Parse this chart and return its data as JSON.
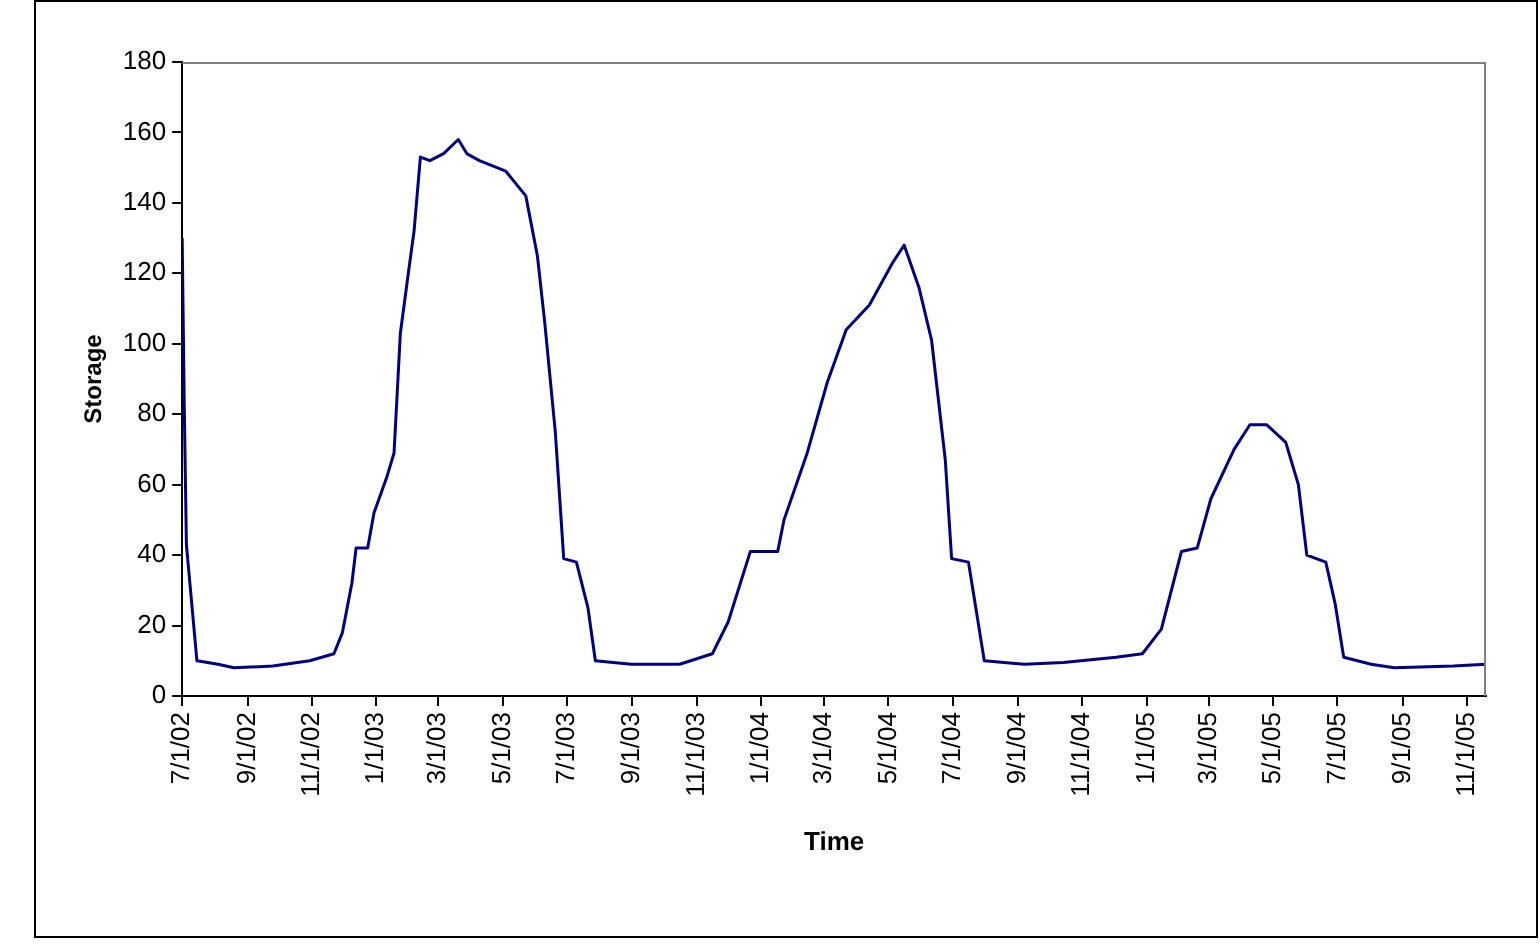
{
  "chart_data": {
    "type": "line",
    "xlabel": "Time",
    "ylabel": "Storage",
    "x": [
      "2002-07-01",
      "2002-07-03",
      "2002-07-05",
      "2002-07-15",
      "2002-08-04",
      "2002-08-19",
      "2002-09-25",
      "2002-10-30",
      "2002-11-22",
      "2002-11-30",
      "2002-12-09",
      "2002-12-13",
      "2002-12-24",
      "2002-12-30",
      "2003-01-11",
      "2003-01-18",
      "2003-01-24",
      "2003-02-01",
      "2003-02-06",
      "2003-02-12",
      "2003-02-21",
      "2003-03-06",
      "2003-03-20",
      "2003-03-28",
      "2003-04-09",
      "2003-05-04",
      "2003-05-23",
      "2003-06-03",
      "2003-06-10",
      "2003-06-20",
      "2003-06-28",
      "2003-07-10",
      "2003-07-21",
      "2003-07-28",
      "2003-08-31",
      "2003-10-16",
      "2003-11-16",
      "2003-12-01",
      "2003-12-22",
      "2004-01-17",
      "2004-01-23",
      "2004-02-14",
      "2004-03-04",
      "2004-03-22",
      "2004-04-13",
      "2004-05-05",
      "2004-05-16",
      "2004-05-30",
      "2004-06-11",
      "2004-06-24",
      "2004-06-30",
      "2004-07-16",
      "2004-07-31",
      "2004-09-07",
      "2004-10-14",
      "2004-12-03",
      "2004-12-28",
      "2005-01-15",
      "2005-02-03",
      "2005-02-18",
      "2005-03-03",
      "2005-03-25",
      "2005-04-09",
      "2005-04-25",
      "2005-05-13",
      "2005-05-25",
      "2005-06-02",
      "2005-06-20",
      "2005-06-29",
      "2005-07-07",
      "2005-08-02",
      "2005-08-24",
      "2005-10-19",
      "2005-11-19"
    ],
    "series": [
      {
        "color": "#000080",
        "values": [
          130,
          82,
          43,
          10,
          9,
          8,
          8.5,
          10,
          12,
          18,
          32,
          42,
          42,
          52,
          62,
          69,
          103,
          121,
          132,
          153,
          152,
          154,
          158,
          154,
          152,
          149,
          142,
          125,
          106,
          75,
          39,
          38,
          25,
          10,
          9,
          9,
          12,
          21,
          41,
          41,
          50,
          69,
          89,
          104,
          111,
          123,
          128,
          116,
          101,
          67,
          39,
          38,
          10,
          9,
          9.5,
          11,
          12,
          19,
          41,
          42,
          56,
          70,
          77,
          77,
          72,
          60,
          40,
          38,
          26,
          11,
          9,
          8,
          8.5,
          9
        ]
      }
    ],
    "xlim": [
      "2002-07-01",
      "2005-11-19"
    ],
    "xticks": [
      {
        "value": "2002-07-01",
        "label": "7/1/02"
      },
      {
        "value": "2002-09-01",
        "label": "9/1/02"
      },
      {
        "value": "2002-11-01",
        "label": "11/1/02"
      },
      {
        "value": "2003-01-01",
        "label": "1/1/03"
      },
      {
        "value": "2003-03-01",
        "label": "3/1/03"
      },
      {
        "value": "2003-05-01",
        "label": "5/1/03"
      },
      {
        "value": "2003-07-01",
        "label": "7/1/03"
      },
      {
        "value": "2003-09-01",
        "label": "9/1/03"
      },
      {
        "value": "2003-11-01",
        "label": "11/1/03"
      },
      {
        "value": "2004-01-01",
        "label": "1/1/04"
      },
      {
        "value": "2004-03-01",
        "label": "3/1/04"
      },
      {
        "value": "2004-05-01",
        "label": "5/1/04"
      },
      {
        "value": "2004-07-01",
        "label": "7/1/04"
      },
      {
        "value": "2004-09-01",
        "label": "9/1/04"
      },
      {
        "value": "2004-11-01",
        "label": "11/1/04"
      },
      {
        "value": "2005-01-01",
        "label": "1/1/05"
      },
      {
        "value": "2005-03-01",
        "label": "3/1/05"
      },
      {
        "value": "2005-05-01",
        "label": "5/1/05"
      },
      {
        "value": "2005-07-01",
        "label": "7/1/05"
      },
      {
        "value": "2005-09-01",
        "label": "9/1/05"
      },
      {
        "value": "2005-11-01",
        "label": "11/1/05"
      }
    ],
    "ylim": [
      0,
      180
    ],
    "yticks": [
      0,
      20,
      40,
      60,
      80,
      100,
      120,
      140,
      160,
      180
    ],
    "grid": false,
    "legend": false,
    "marker": "none",
    "line_style": "solid"
  }
}
